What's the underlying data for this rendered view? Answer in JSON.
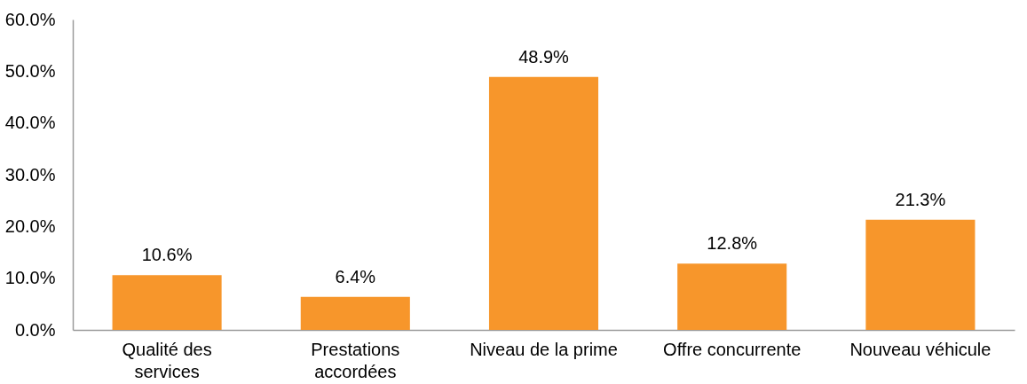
{
  "chart_data": {
    "type": "bar",
    "categories": [
      "Qualité des services",
      "Prestations accordées",
      "Niveau de la prime",
      "Offre concurrente",
      "Nouveau véhicule"
    ],
    "values": [
      10.6,
      6.4,
      48.9,
      12.8,
      21.3
    ],
    "value_labels": [
      "10.6%",
      "6.4%",
      "48.9%",
      "12.8%",
      "21.3%"
    ],
    "color": "#f7962b",
    "ylim": [
      0,
      60
    ],
    "yticks": [
      {
        "value": 0,
        "label": "0.0%"
      },
      {
        "value": 10,
        "label": "10.0%"
      },
      {
        "value": 20,
        "label": "20.0%"
      },
      {
        "value": 30,
        "label": "30.0%"
      },
      {
        "value": 40,
        "label": "40.0%"
      },
      {
        "value": 50,
        "label": "50.0%"
      },
      {
        "value": 60,
        "label": "60.0%"
      }
    ]
  }
}
